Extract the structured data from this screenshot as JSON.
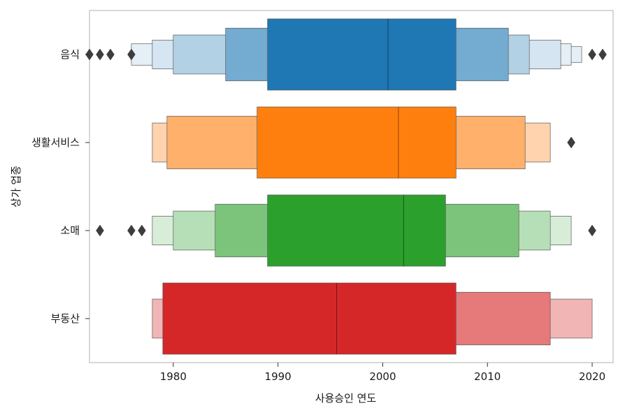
{
  "chart_data": {
    "type": "boxen",
    "orientation": "horizontal",
    "xlabel": "사용승인 연도",
    "ylabel": "상가 업종",
    "xlim": [
      1972,
      2022
    ],
    "x_ticks": [
      1980,
      1990,
      2000,
      2010,
      2020
    ],
    "grid": false,
    "legend": "none",
    "categories": [
      "음식",
      "생활서비스",
      "소매",
      "부동산"
    ],
    "series": [
      {
        "category": "음식",
        "color": "#1f77b4",
        "median": 2000.5,
        "levels": [
          [
            1989,
            2007
          ],
          [
            1985,
            2012
          ],
          [
            1980,
            2014
          ],
          [
            1978,
            2017
          ],
          [
            1976,
            2018
          ],
          [
            1976,
            2019
          ]
        ],
        "outliers": [
          1972,
          1973,
          1974,
          1976,
          2020,
          2021
        ]
      },
      {
        "category": "생활서비스",
        "color": "#ff7f0e",
        "median": 2001.5,
        "levels": [
          [
            1988,
            2007
          ],
          [
            1979.4,
            2013.6
          ],
          [
            1978,
            2016
          ]
        ],
        "outliers": [
          2018
        ]
      },
      {
        "category": "소매",
        "color": "#2ca02c",
        "median": 2002,
        "levels": [
          [
            1989,
            2006
          ],
          [
            1984,
            2013
          ],
          [
            1980,
            2016
          ],
          [
            1978,
            2018
          ]
        ],
        "outliers": [
          1973,
          1976,
          1977,
          2020
        ]
      },
      {
        "category": "부동산",
        "color": "#d62728",
        "median": 1995.6,
        "levels": [
          [
            1979,
            2007
          ],
          [
            1979,
            2016
          ],
          [
            1978,
            2020
          ]
        ],
        "outliers": []
      }
    ]
  }
}
